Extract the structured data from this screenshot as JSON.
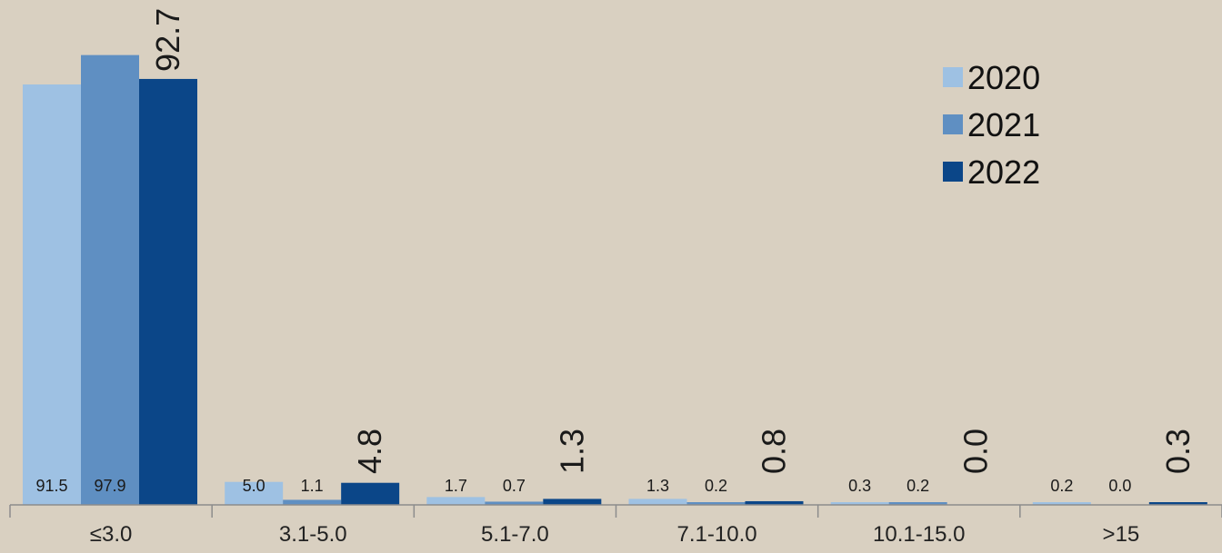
{
  "chart_data": {
    "type": "bar",
    "title": "",
    "xlabel": "",
    "ylabel": "",
    "categories": [
      "≤3.0",
      "3.1-5.0",
      "5.1-7.0",
      "7.1-10.0",
      "10.1-15.0",
      ">15"
    ],
    "series": [
      {
        "name": "2020",
        "color": "#9ec1e3",
        "values": [
          91.5,
          5.0,
          1.7,
          1.3,
          0.3,
          0.2
        ]
      },
      {
        "name": "2021",
        "color": "#5f8fc2",
        "values": [
          97.9,
          1.1,
          0.7,
          0.2,
          0.2,
          0.0
        ]
      },
      {
        "name": "2022",
        "color": "#0b4688",
        "values": [
          92.7,
          4.8,
          1.3,
          0.8,
          0.0,
          0.3
        ]
      }
    ],
    "data_labels": [
      [
        "91.5",
        "5.0",
        "1.7",
        "1.3",
        "0.3",
        "0.2"
      ],
      [
        "97.9",
        "1.1",
        "0.7",
        "0.2",
        "0.2",
        "0.0"
      ],
      [
        "92.7",
        "4.8",
        "1.3",
        "0.8",
        "0.0",
        "0.3"
      ]
    ],
    "ylim": [
      0,
      100
    ],
    "grid": false,
    "legend_position": "top-right",
    "axis_color": "#8c8c8c"
  }
}
